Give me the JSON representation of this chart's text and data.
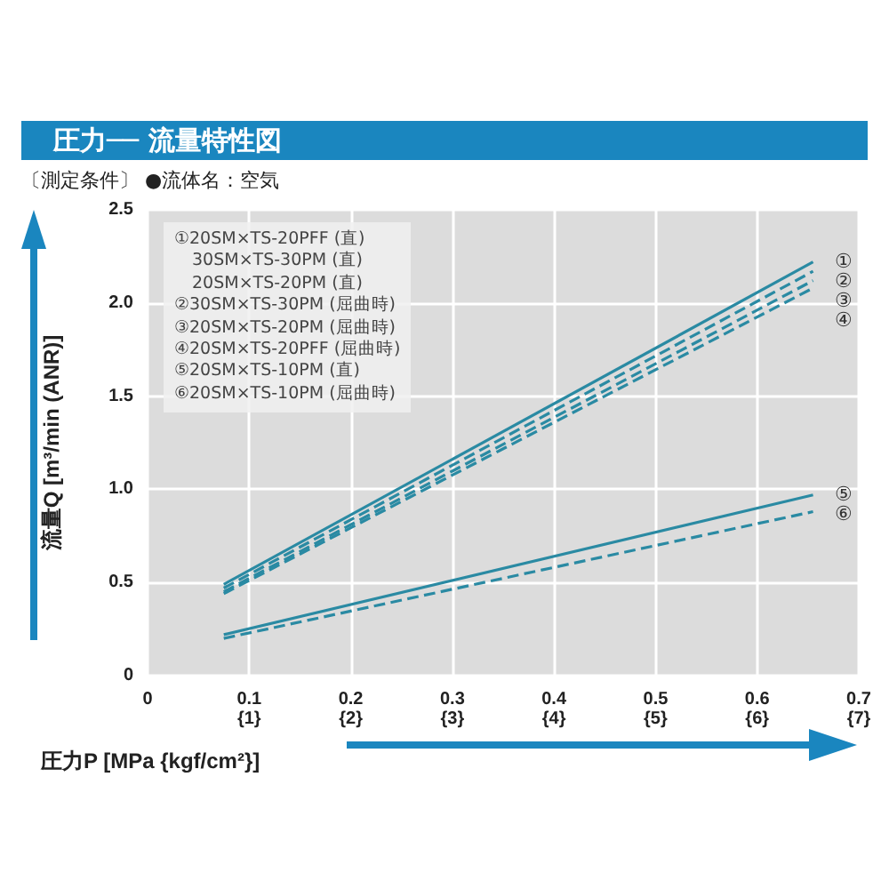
{
  "chart_data": {
    "type": "line",
    "title": "圧力── 流量特性図",
    "subtitle": "〔測定条件〕 ●流体名：空気",
    "xlabel": "圧力P [MPa {kgf/cm²}]",
    "ylabel": "流量Q [m³/min (ANR)]",
    "xlim": [
      0,
      0.7
    ],
    "ylim": [
      0,
      2.5
    ],
    "xticks": [
      0,
      0.1,
      0.2,
      0.3,
      0.4,
      0.5,
      0.6,
      0.7
    ],
    "x2lim": [
      0,
      7
    ],
    "x2ticks": [
      {
        "value": 1,
        "label": "{1}"
      },
      {
        "value": 2,
        "label": "{2}"
      },
      {
        "value": 3,
        "label": "{3}"
      },
      {
        "value": 4,
        "label": "{4}"
      },
      {
        "value": 5,
        "label": "{5}"
      },
      {
        "value": 6,
        "label": "{6}"
      },
      {
        "value": 7,
        "label": "{7}"
      }
    ],
    "yticks": [
      0,
      0.5,
      {
        "value": 1,
        "label": "1.0"
      },
      1.5,
      {
        "value": 2,
        "label": "2.0"
      },
      2.5
    ],
    "grid": true,
    "x": [
      0.075,
      0.655
    ],
    "series": [
      {
        "name": "①",
        "color": "#2a8aa3",
        "line_style": "solid",
        "values": [
          0.49,
          2.22
        ]
      },
      {
        "name": "②",
        "color": "#2a8aa3",
        "line_style": "dashed",
        "values": [
          0.47,
          2.17
        ]
      },
      {
        "name": "③",
        "color": "#2a8aa3",
        "line_style": "dashed",
        "values": [
          0.45,
          2.12
        ]
      },
      {
        "name": "④",
        "color": "#2a8aa3",
        "line_style": "dashed",
        "values": [
          0.44,
          2.08
        ]
      },
      {
        "name": "⑤",
        "color": "#2a8aa3",
        "line_style": "solid",
        "values": [
          0.22,
          0.97
        ]
      },
      {
        "name": "⑥",
        "color": "#2a8aa3",
        "line_style": "dashed",
        "values": [
          0.2,
          0.88
        ]
      }
    ],
    "annotations": [
      "①20SM×TS-20PFF (直)",
      "　30SM×TS-30PM (直)",
      "　20SM×TS-20PM (直)",
      "②30SM×TS-30PM (屈曲時)",
      "③20SM×TS-20PM (屈曲時)",
      "④20SM×TS-20PFF (屈曲時)",
      "⑤20SM×TS-10PM (直)",
      "⑥20SM×TS-10PM (屈曲時)"
    ]
  }
}
